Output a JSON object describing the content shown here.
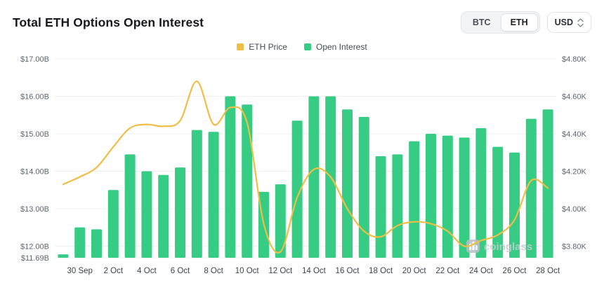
{
  "header": {
    "title": "Total ETH Options Open Interest",
    "toggle": {
      "btc": "BTC",
      "eth": "ETH",
      "active": "ETH"
    },
    "currency": "USD"
  },
  "watermark": "coinglass",
  "chart_data": {
    "type": "bar+line",
    "title": "Total ETH Options Open Interest",
    "x": [
      "29 Sep",
      "30 Sep",
      "1 Oct",
      "2 Oct",
      "3 Oct",
      "4 Oct",
      "5 Oct",
      "6 Oct",
      "7 Oct",
      "8 Oct",
      "9 Oct",
      "10 Oct",
      "11 Oct",
      "12 Oct",
      "13 Oct",
      "14 Oct",
      "15 Oct",
      "16 Oct",
      "17 Oct",
      "18 Oct",
      "19 Oct",
      "20 Oct",
      "21 Oct",
      "22 Oct",
      "23 Oct",
      "24 Oct",
      "25 Oct",
      "26 Oct",
      "27 Oct",
      "28 Oct"
    ],
    "x_tick_labels": [
      "30 Sep",
      "2 Oct",
      "4 Oct",
      "6 Oct",
      "8 Oct",
      "10 Oct",
      "12 Oct",
      "14 Oct",
      "16 Oct",
      "18 Oct",
      "20 Oct",
      "22 Oct",
      "24 Oct",
      "26 Oct",
      "28 Oct"
    ],
    "series": [
      {
        "name": "ETH Price",
        "type": "line",
        "axis": "right",
        "unit": "$K",
        "color": "#efbe45",
        "values": [
          4.13,
          4.17,
          4.22,
          4.33,
          4.43,
          4.45,
          4.44,
          4.47,
          4.68,
          4.45,
          4.54,
          4.46,
          3.92,
          3.77,
          4.06,
          4.21,
          4.17,
          4.0,
          3.88,
          3.85,
          3.91,
          3.93,
          3.92,
          3.88,
          3.8,
          3.83,
          3.86,
          3.94,
          4.15,
          4.11
        ]
      },
      {
        "name": "Open Interest",
        "type": "bar",
        "axis": "left",
        "unit": "$B",
        "color": "#36cc84",
        "values": [
          11.78,
          12.5,
          12.45,
          13.5,
          14.45,
          14.0,
          13.9,
          14.1,
          15.1,
          15.05,
          16.0,
          15.78,
          13.45,
          13.65,
          15.35,
          16.0,
          16.0,
          15.65,
          15.45,
          14.4,
          14.45,
          14.8,
          15.0,
          14.95,
          14.9,
          15.15,
          14.65,
          14.5,
          15.4,
          15.65
        ]
      }
    ],
    "left_axis": {
      "tick_labels": [
        "$17.00B",
        "$16.00B",
        "$15.00B",
        "$14.00B",
        "$13.00B",
        "$12.00B",
        "$11.69B"
      ],
      "tick_values": [
        17.0,
        16.0,
        15.0,
        14.0,
        13.0,
        12.0,
        11.69
      ],
      "min": 11.69,
      "max": 17.0
    },
    "right_axis": {
      "tick_labels": [
        "$4.80K",
        "$4.60K",
        "$4.40K",
        "$4.20K",
        "$4.00K",
        "$3.80K"
      ],
      "tick_values": [
        4.8,
        4.6,
        4.4,
        4.2,
        4.0,
        3.8
      ],
      "min": 3.738,
      "max": 4.8
    },
    "grid": true,
    "legend_position": "top-center"
  }
}
